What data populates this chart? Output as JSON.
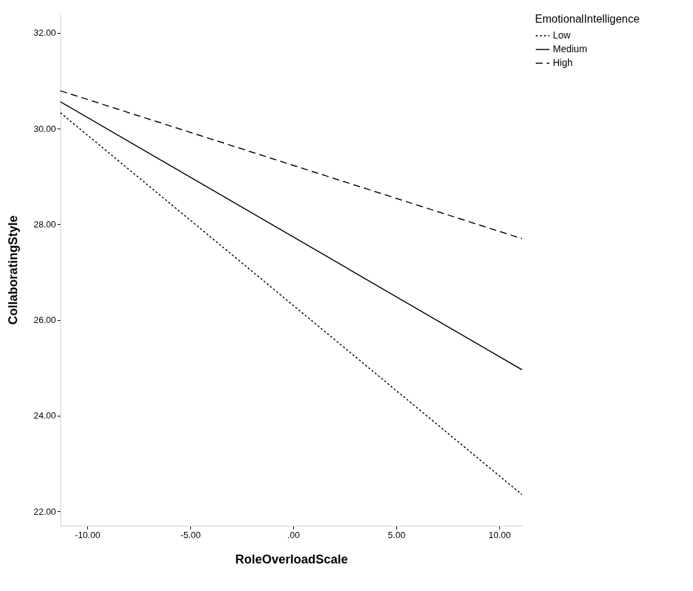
{
  "chart_data": {
    "type": "line",
    "xlabel": "RoleOverloadScale",
    "ylabel": "CollaboratingStyle",
    "legend_title": "EmotionalIntelligence",
    "legend": "top right",
    "grid": false,
    "marker": "none",
    "x": [
      -11.3,
      11.1
    ],
    "xlim": [
      -11.3,
      11.1
    ],
    "ylim": [
      21.7,
      32.4
    ],
    "xticks": [
      {
        "value": -10,
        "label": "-10.00"
      },
      {
        "value": -5,
        "label": "-5.00"
      },
      {
        "value": 0,
        "label": ".00"
      },
      {
        "value": 5,
        "label": "5.00"
      },
      {
        "value": 10,
        "label": "10.00"
      }
    ],
    "yticks": [
      {
        "value": 22,
        "label": "22.00"
      },
      {
        "value": 24,
        "label": "24.00"
      },
      {
        "value": 26,
        "label": "26.00"
      },
      {
        "value": 28,
        "label": "28.00"
      },
      {
        "value": 30,
        "label": "30.00"
      },
      {
        "value": 32,
        "label": "32.00"
      }
    ],
    "series": [
      {
        "name": "Low",
        "color": "#000000",
        "line_style": "dotted",
        "values": [
          30.33,
          22.35
        ]
      },
      {
        "name": "Medium",
        "color": "#000000",
        "line_style": "solid",
        "values": [
          30.56,
          24.96
        ]
      },
      {
        "name": "High",
        "color": "#000000",
        "line_style": "dashed",
        "values": [
          30.79,
          27.7
        ]
      }
    ]
  }
}
